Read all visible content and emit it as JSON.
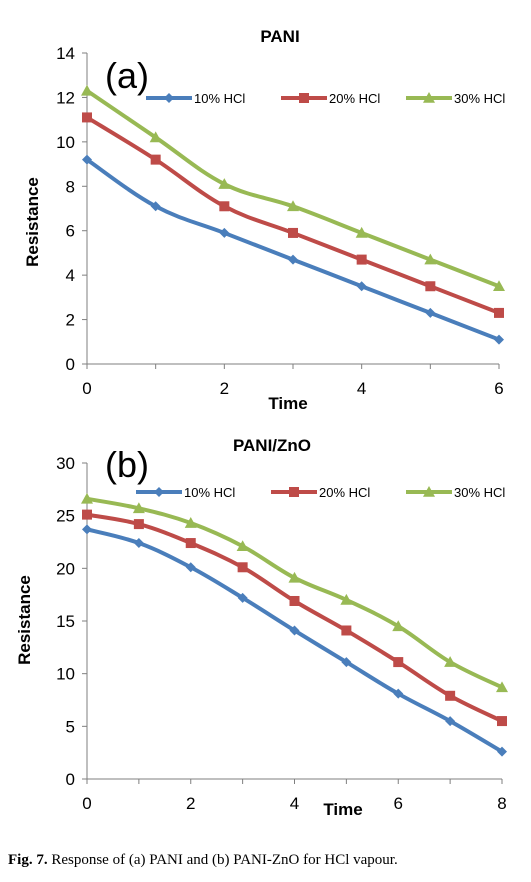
{
  "chart_data": [
    {
      "type": "line",
      "title": "PANI",
      "panel_label": "(a)",
      "xlabel": "Time",
      "ylabel": "Resistance",
      "xlim": [
        0,
        6
      ],
      "ylim": [
        0,
        14
      ],
      "xticks": [
        "0",
        "2",
        "4",
        "6"
      ],
      "yticks": [
        "0",
        "2",
        "4",
        "6",
        "8",
        "10",
        "12",
        "14"
      ],
      "legend_position": "top",
      "x": [
        0,
        1,
        2,
        3,
        4,
        5,
        6
      ],
      "series": [
        {
          "name": "10% HCl",
          "color": "#4a7ebb",
          "marker": "diamond",
          "values": [
            9.2,
            7.1,
            5.9,
            4.7,
            3.5,
            2.3,
            1.1
          ]
        },
        {
          "name": "20% HCl",
          "color": "#be4b48",
          "marker": "square",
          "values": [
            11.1,
            9.2,
            7.1,
            5.9,
            4.7,
            3.5,
            2.3
          ]
        },
        {
          "name": "30% HCl",
          "color": "#98b954",
          "marker": "triangle",
          "values": [
            12.3,
            10.2,
            8.1,
            7.1,
            5.9,
            4.7,
            3.5
          ]
        }
      ]
    },
    {
      "type": "line",
      "title": "PANI/ZnO",
      "panel_label": "(b)",
      "xlabel": "Time",
      "ylabel": "Resistance",
      "xlim": [
        0,
        8
      ],
      "ylim": [
        0,
        30
      ],
      "xticks": [
        "0",
        "2",
        "4",
        "6",
        "8"
      ],
      "yticks": [
        "0",
        "5",
        "10",
        "15",
        "20",
        "25",
        "30"
      ],
      "legend_position": "top",
      "x": [
        0,
        1,
        2,
        3,
        4,
        5,
        6,
        7,
        8
      ],
      "series": [
        {
          "name": "10% HCl",
          "color": "#4a7ebb",
          "marker": "diamond",
          "values": [
            23.7,
            22.4,
            20.1,
            17.2,
            14.1,
            11.1,
            8.1,
            5.5,
            2.6
          ]
        },
        {
          "name": "20% HCl",
          "color": "#be4b48",
          "marker": "square",
          "values": [
            25.1,
            24.2,
            22.4,
            20.1,
            16.9,
            14.1,
            11.1,
            7.9,
            5.5
          ]
        },
        {
          "name": "30% HCl",
          "color": "#98b954",
          "marker": "triangle",
          "values": [
            26.6,
            25.7,
            24.3,
            22.1,
            19.1,
            17.0,
            14.5,
            11.1,
            8.7
          ]
        }
      ]
    }
  ],
  "caption": {
    "label": "Fig. 7.",
    "text": " Response of (a) PANI and (b) PANI-ZnO for HCl vapour."
  }
}
